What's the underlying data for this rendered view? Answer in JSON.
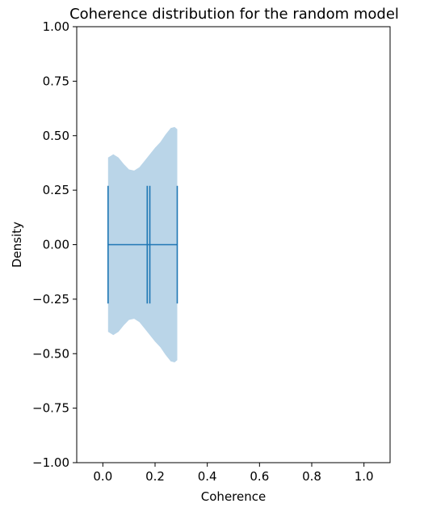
{
  "chart_data": {
    "type": "violin",
    "title": "Coherence distribution for the random model",
    "xlabel": "Coherence",
    "ylabel": "Density",
    "xlim": [
      -0.1,
      1.1
    ],
    "ylim": [
      -1.0,
      1.0
    ],
    "xticks": [
      0.0,
      0.2,
      0.4,
      0.6,
      0.8,
      1.0
    ],
    "xtick_labels": [
      "0.0",
      "0.2",
      "0.4",
      "0.6",
      "0.8",
      "1.0"
    ],
    "yticks": [
      -1.0,
      -0.75,
      -0.5,
      -0.25,
      0.0,
      0.25,
      0.5,
      0.75,
      1.0
    ],
    "ytick_labels": [
      "−1.00",
      "−0.75",
      "−0.50",
      "−0.25",
      "0.00",
      "0.25",
      "0.50",
      "0.75",
      "1.00"
    ],
    "grid": false,
    "orientation": "horizontal",
    "position": 0.0,
    "min": 0.02,
    "max": 0.285,
    "mean": 0.17,
    "median": 0.18,
    "cap_halfwidth": 0.27,
    "density_profile": [
      {
        "x": 0.02,
        "half_width": 0.4
      },
      {
        "x": 0.04,
        "half_width": 0.415
      },
      {
        "x": 0.06,
        "half_width": 0.4
      },
      {
        "x": 0.08,
        "half_width": 0.37
      },
      {
        "x": 0.1,
        "half_width": 0.345
      },
      {
        "x": 0.12,
        "half_width": 0.34
      },
      {
        "x": 0.14,
        "half_width": 0.355
      },
      {
        "x": 0.16,
        "half_width": 0.385
      },
      {
        "x": 0.18,
        "half_width": 0.415
      },
      {
        "x": 0.2,
        "half_width": 0.445
      },
      {
        "x": 0.22,
        "half_width": 0.47
      },
      {
        "x": 0.24,
        "half_width": 0.505
      },
      {
        "x": 0.26,
        "half_width": 0.535
      },
      {
        "x": 0.275,
        "half_width": 0.54
      },
      {
        "x": 0.285,
        "half_width": 0.53
      }
    ],
    "colors": {
      "body_fill": "#bad5e8",
      "lines": "#1f77b4",
      "axes": "#000000"
    }
  }
}
